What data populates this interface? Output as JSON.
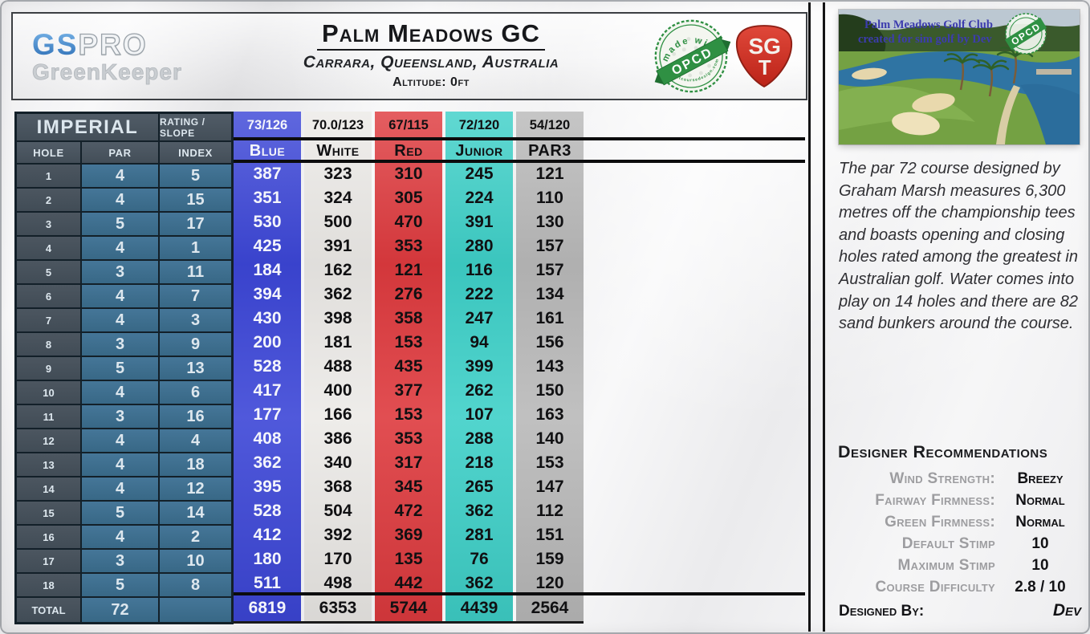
{
  "header": {
    "logo": {
      "gs": "GS",
      "pro": "PRO",
      "sub": "GreenKeeper"
    },
    "title": "Palm Meadows GC",
    "location": "Carrara, Queensland, Australia",
    "altitude": "Altitude: 0ft",
    "opcd_badge": {
      "top": "made with",
      "center": "OPCD",
      "bottom": "oneputtcoursedesign.com"
    },
    "sgt_badge": {
      "line1": "SG",
      "line2": "T"
    }
  },
  "scorecard": {
    "units_label": "IMPERIAL",
    "rating_slope_label": "RATING / SLOPE",
    "col_headers": {
      "hole": "HOLE",
      "par": "PAR",
      "index": "INDEX"
    },
    "total_label": "TOTAL",
    "total_par": "72",
    "tees": [
      {
        "name": "Blue",
        "rating": "73/126",
        "color": "#3c46d7",
        "text": "#f4f5fb",
        "total": "6819"
      },
      {
        "name": "White",
        "rating": "70.0/123",
        "color": "#eceae7",
        "text": "#101012",
        "total": "6353"
      },
      {
        "name": "Red",
        "rating": "67/115",
        "color": "#de3a3e",
        "text": "#101012",
        "total": "5744"
      },
      {
        "name": "Junior",
        "rating": "72/120",
        "color": "#3ed0c8",
        "text": "#101012",
        "total": "4439"
      },
      {
        "name": "PAR3",
        "rating": "54/120",
        "color": "#b9b9b9",
        "text": "#101012",
        "total": "2564"
      }
    ],
    "holes": [
      {
        "hole": "1",
        "par": "4",
        "index": "5",
        "yards": [
          "387",
          "323",
          "310",
          "245",
          "121"
        ]
      },
      {
        "hole": "2",
        "par": "4",
        "index": "15",
        "yards": [
          "351",
          "324",
          "305",
          "224",
          "110"
        ]
      },
      {
        "hole": "3",
        "par": "5",
        "index": "17",
        "yards": [
          "530",
          "500",
          "470",
          "391",
          "130"
        ]
      },
      {
        "hole": "4",
        "par": "4",
        "index": "1",
        "yards": [
          "425",
          "391",
          "353",
          "280",
          "157"
        ]
      },
      {
        "hole": "5",
        "par": "3",
        "index": "11",
        "yards": [
          "184",
          "162",
          "121",
          "116",
          "157"
        ]
      },
      {
        "hole": "6",
        "par": "4",
        "index": "7",
        "yards": [
          "394",
          "362",
          "276",
          "222",
          "134"
        ]
      },
      {
        "hole": "7",
        "par": "4",
        "index": "3",
        "yards": [
          "430",
          "398",
          "358",
          "247",
          "161"
        ]
      },
      {
        "hole": "8",
        "par": "3",
        "index": "9",
        "yards": [
          "200",
          "181",
          "153",
          "94",
          "156"
        ]
      },
      {
        "hole": "9",
        "par": "5",
        "index": "13",
        "yards": [
          "528",
          "488",
          "435",
          "399",
          "143"
        ]
      },
      {
        "hole": "10",
        "par": "4",
        "index": "6",
        "yards": [
          "417",
          "400",
          "377",
          "262",
          "150"
        ]
      },
      {
        "hole": "11",
        "par": "3",
        "index": "16",
        "yards": [
          "177",
          "166",
          "153",
          "107",
          "163"
        ]
      },
      {
        "hole": "12",
        "par": "4",
        "index": "4",
        "yards": [
          "408",
          "386",
          "353",
          "288",
          "140"
        ]
      },
      {
        "hole": "13",
        "par": "4",
        "index": "18",
        "yards": [
          "362",
          "340",
          "317",
          "218",
          "153"
        ]
      },
      {
        "hole": "14",
        "par": "4",
        "index": "12",
        "yards": [
          "395",
          "368",
          "345",
          "265",
          "147"
        ]
      },
      {
        "hole": "15",
        "par": "5",
        "index": "14",
        "yards": [
          "528",
          "504",
          "472",
          "362",
          "112"
        ]
      },
      {
        "hole": "16",
        "par": "4",
        "index": "2",
        "yards": [
          "412",
          "392",
          "369",
          "281",
          "151"
        ]
      },
      {
        "hole": "17",
        "par": "3",
        "index": "10",
        "yards": [
          "180",
          "170",
          "135",
          "76",
          "159"
        ]
      },
      {
        "hole": "18",
        "par": "5",
        "index": "8",
        "yards": [
          "511",
          "498",
          "442",
          "362",
          "120"
        ]
      }
    ]
  },
  "sidebar": {
    "photo": {
      "overlay_line1": "Palm Meadows Golf Club",
      "overlay_line2": "created for sim golf by Dev",
      "stamp": "OPCD"
    },
    "description": "The par 72 course designed by Graham Marsh measures 6,300 metres off the championship tees and boasts opening and closing holes rated among the greatest in Australian golf. Water comes into play on 14 holes and there are 82 sand bunkers around the course.",
    "recommendations": {
      "heading": "Designer Recommendations",
      "rows": [
        {
          "label": "Wind Strength:",
          "value": "Breezy"
        },
        {
          "label": "Fairway Firmness:",
          "value": "Normal"
        },
        {
          "label": "Green Firmness:",
          "value": "Normal"
        },
        {
          "label": "Default Stimp",
          "value": "10"
        },
        {
          "label": "Maximum Stimp",
          "value": "10"
        },
        {
          "label": "Course Difficulty",
          "value": "2.8 / 10"
        }
      ]
    },
    "designed_by_label": "Designed By:",
    "designed_by_value": "Dev"
  },
  "ui_colors": {
    "header_slate": "#47525d",
    "cell_steel_blue": "#3e7092",
    "opcd_green": "#2f9043",
    "sgt_red": "#d23227",
    "line_black": "#0c0c0d"
  }
}
